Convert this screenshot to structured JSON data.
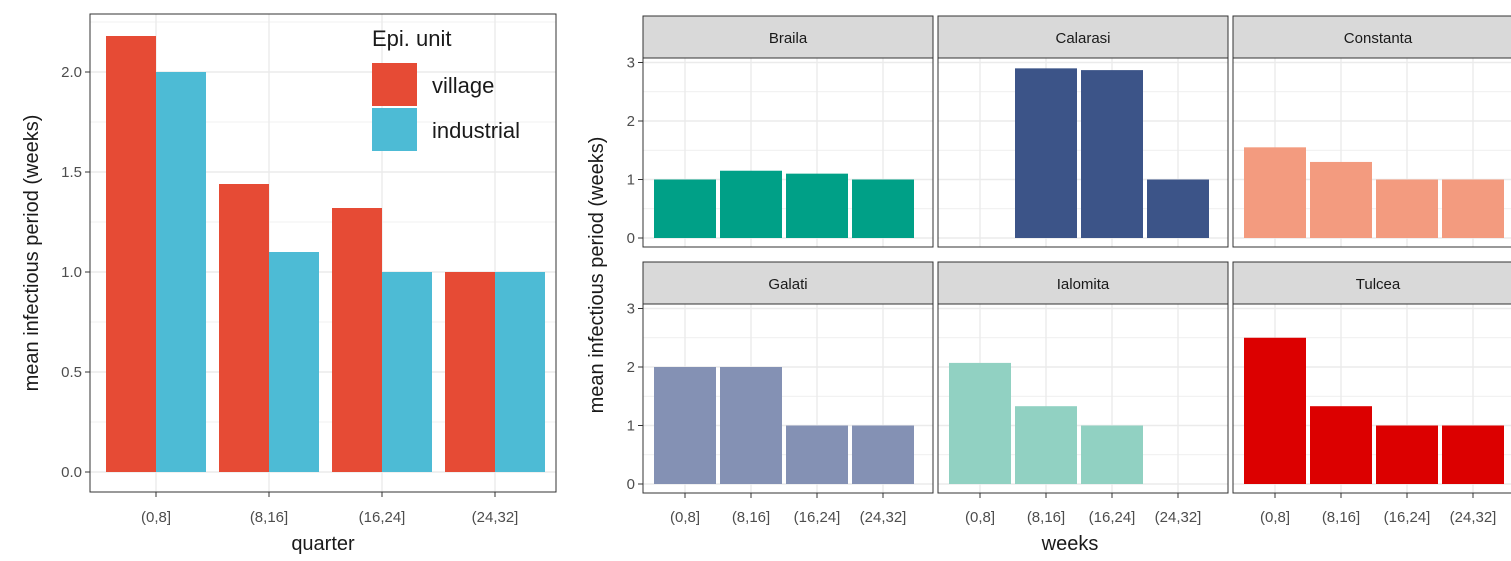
{
  "chart_data": [
    {
      "type": "bar",
      "categories": [
        "(0,8]",
        "(8,16]",
        "(16,24]",
        "(24,32]"
      ],
      "series": [
        {
          "name": "village",
          "values": [
            2.18,
            1.44,
            1.32,
            1.0
          ],
          "color": "#E64B35"
        },
        {
          "name": "industrial",
          "values": [
            2.0,
            1.1,
            1.0,
            1.0
          ],
          "color": "#4DBBD5"
        }
      ],
      "xlabel": "quarter",
      "ylabel": "mean infectious period (weeks)",
      "ylim": [
        0,
        2.28
      ],
      "yticks": [
        "0.0",
        "0.5",
        "1.0",
        "1.5",
        "2.0"
      ],
      "legend": {
        "title": "Epi. unit",
        "position": "top-right"
      },
      "grid": true
    },
    {
      "type": "bar",
      "categories": [
        "(0,8]",
        "(8,16]",
        "(16,24]",
        "(24,32]"
      ],
      "xlabel": "weeks",
      "ylabel": "mean infectious period (weeks)",
      "ylim": [
        0,
        3.05
      ],
      "yticks": [
        "0",
        "1",
        "2",
        "3"
      ],
      "grid": true,
      "facets": [
        {
          "name": "Braila",
          "values": [
            1.0,
            1.15,
            1.1,
            1.0
          ],
          "color": "#00A087"
        },
        {
          "name": "Calarasi",
          "values": [
            null,
            2.9,
            2.87,
            1.0
          ],
          "color": "#3C5488"
        },
        {
          "name": "Constanta",
          "values": [
            1.55,
            1.3,
            1.0,
            1.0
          ],
          "color": "#F39B7F"
        },
        {
          "name": "Galati",
          "values": [
            2.0,
            2.0,
            1.0,
            1.0
          ],
          "color": "#8491B4"
        },
        {
          "name": "Ialomita",
          "values": [
            2.07,
            1.33,
            1.0,
            null
          ],
          "color": "#91D1C2"
        },
        {
          "name": "Tulcea",
          "values": [
            2.5,
            1.33,
            1.0,
            1.0
          ],
          "color": "#DC0000"
        }
      ]
    }
  ]
}
